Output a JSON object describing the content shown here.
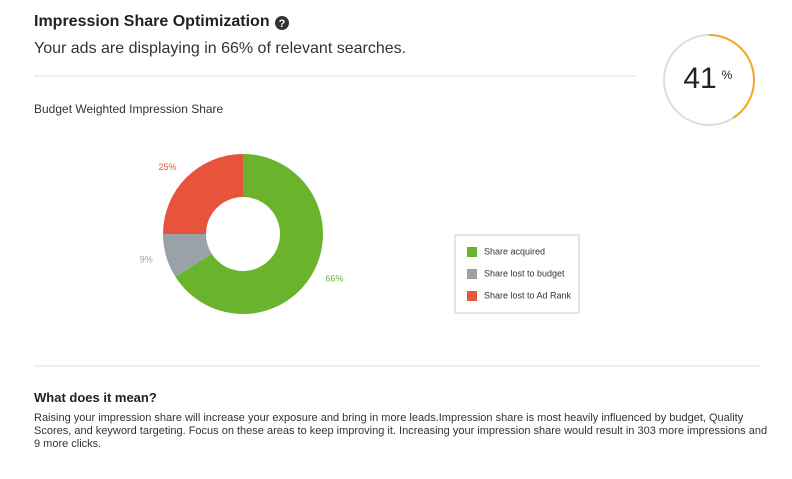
{
  "header": {
    "title": "Impression Share Optimization",
    "help_icon": "?",
    "subtitle": "Your ads are displaying in 66% of relevant searches."
  },
  "gauge": {
    "value": 41,
    "unit": "%"
  },
  "chart_data": {
    "type": "donut",
    "title": "Budget Weighted Impression Share",
    "categories": [
      "Share acquired",
      "Share lost to budget",
      "Share lost to Ad Rank"
    ],
    "values": [
      66,
      9,
      25
    ],
    "value_labels": [
      "66%",
      "9%",
      "25%"
    ],
    "colors": [
      "#6ab42d",
      "#9aa2a8",
      "#e8533b"
    ],
    "legend": "right"
  },
  "explanation": {
    "heading": "What does it mean?",
    "text": "Raising your impression share will increase your exposure and bring in more leads.Impression share is most heavily influenced by budget, Quality Scores, and keyword targeting. Focus on these areas to keep improving it. Increasing your impression share would result in 303 more impressions and 9 more clicks."
  }
}
